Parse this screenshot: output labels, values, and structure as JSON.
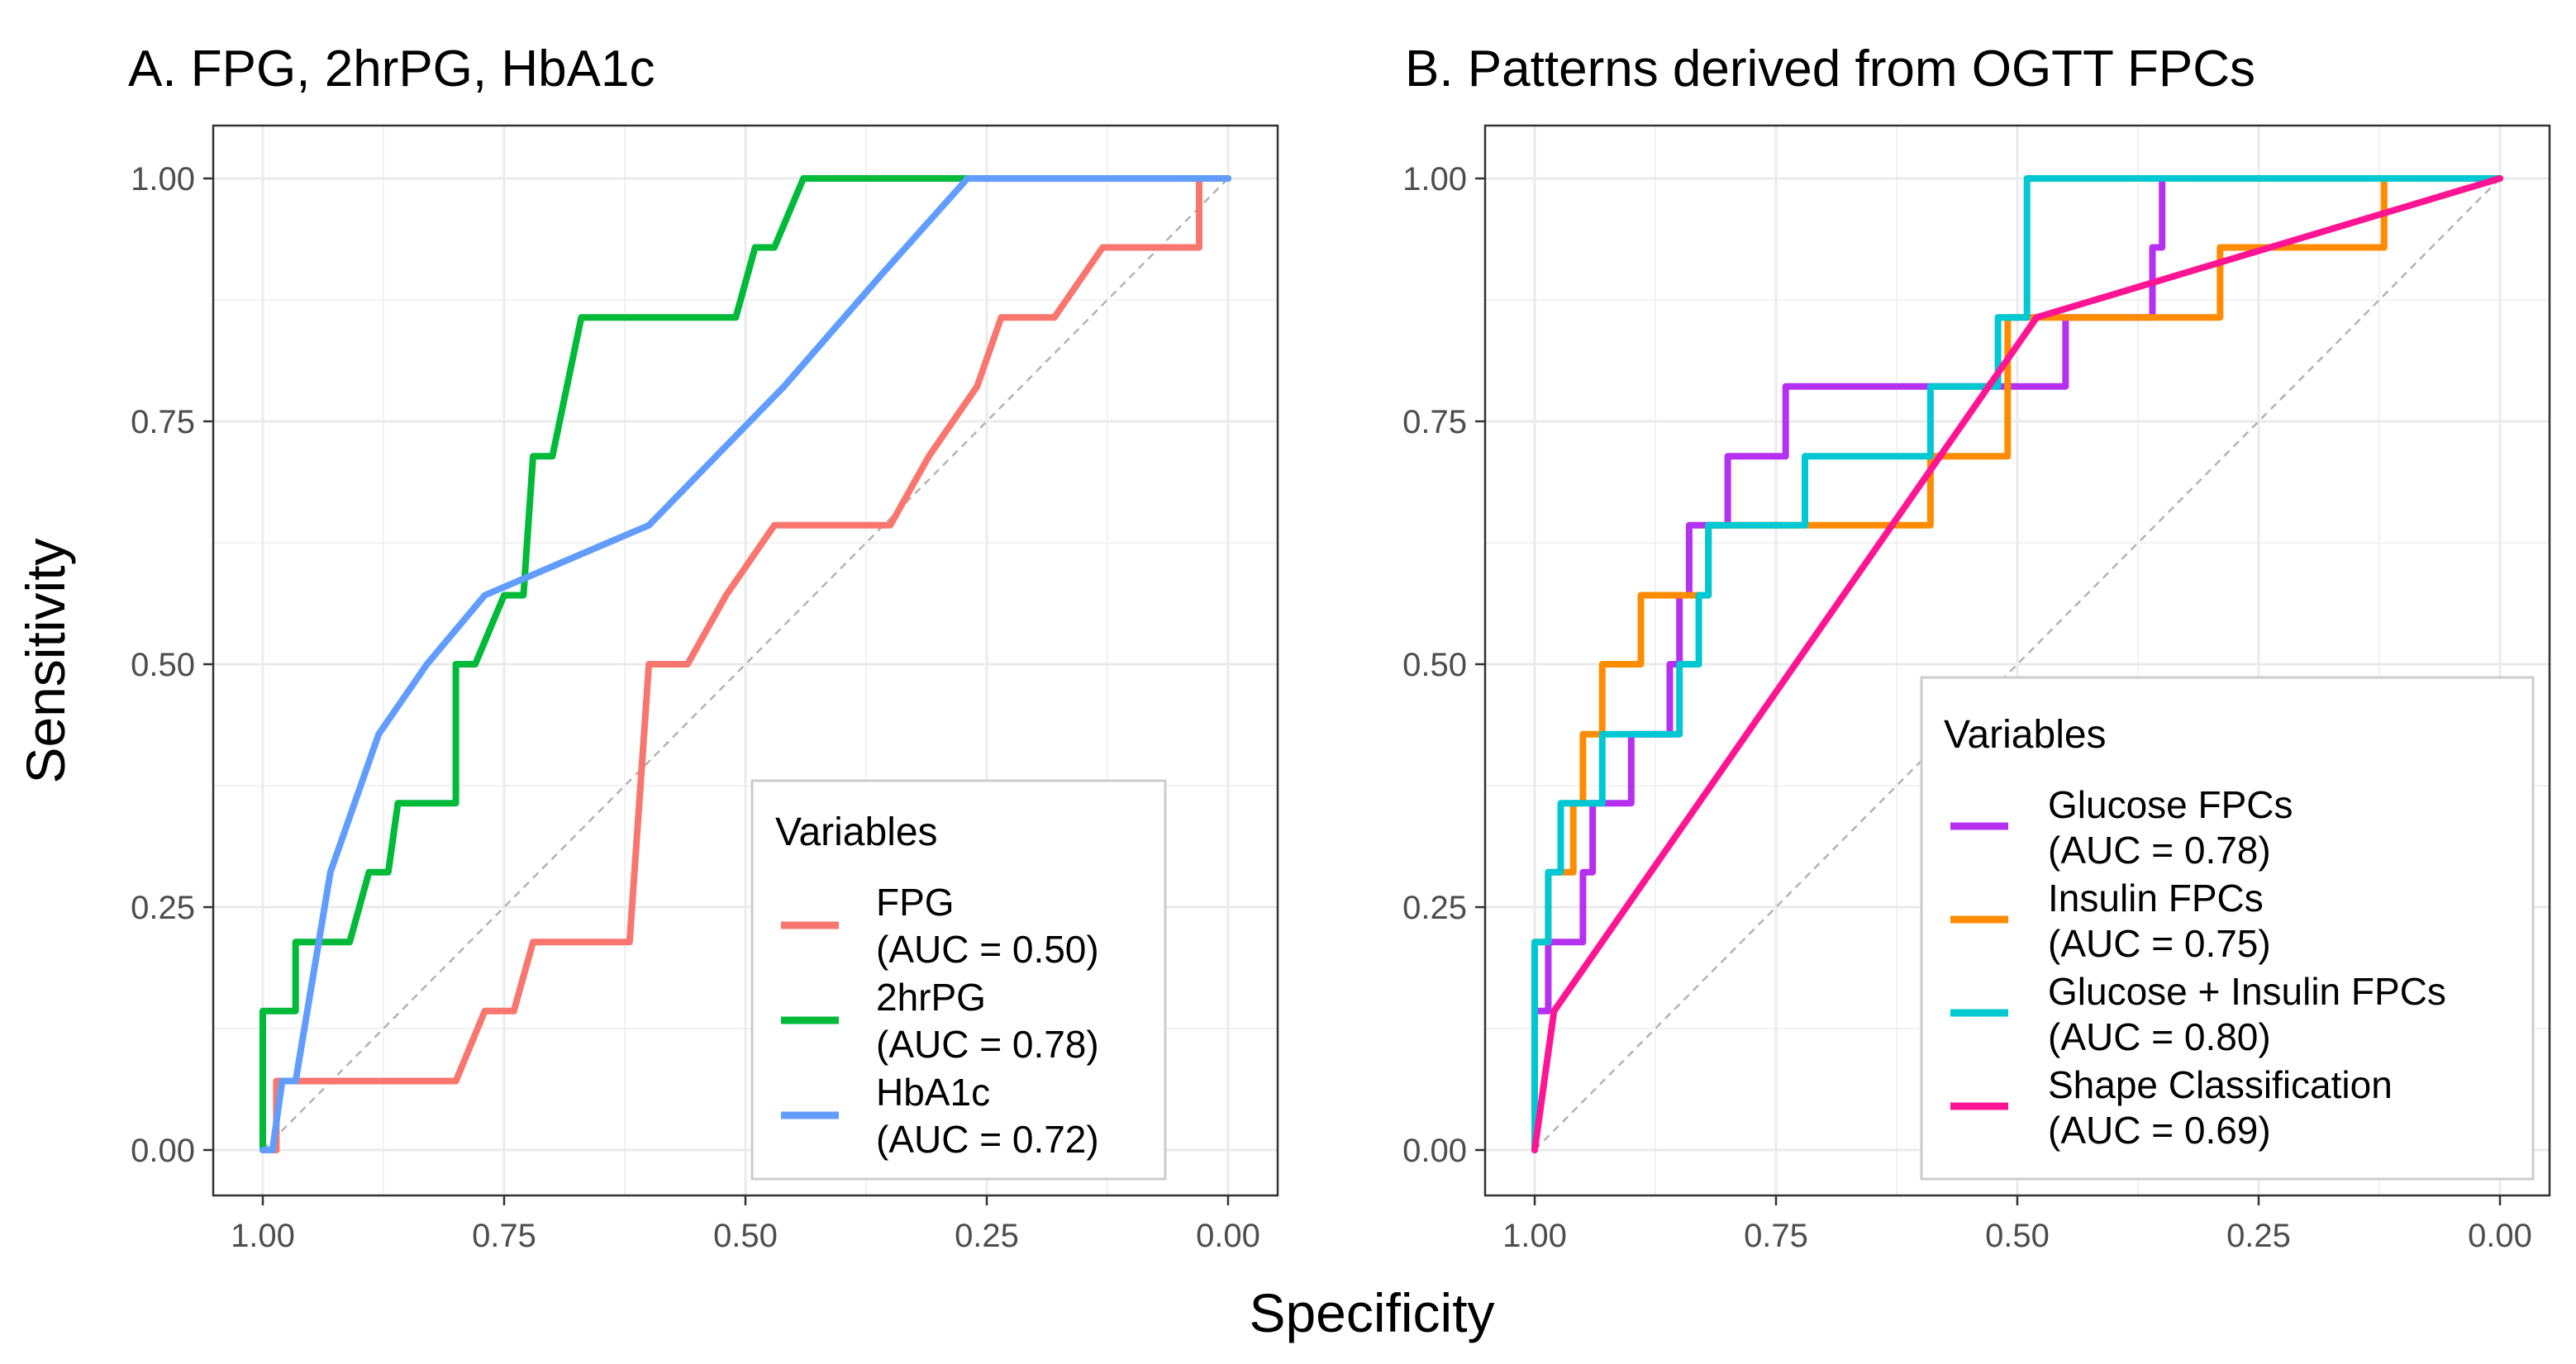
{
  "figure": {
    "xlabel": "Specificity",
    "ylabel": "Sensitivity",
    "tick_labels_x": [
      "1.00",
      "0.75",
      "0.50",
      "0.25",
      "0.00"
    ],
    "tick_labels_y": [
      "0.00",
      "0.25",
      "0.50",
      "0.75",
      "1.00"
    ]
  },
  "chart_data": [
    {
      "type": "line",
      "title": "A. FPG, 2hrPG, HbA1c",
      "xlabel": "Specificity",
      "ylabel": "Sensitivity",
      "xlim": [
        1.0,
        0.0
      ],
      "ylim": [
        0.0,
        1.0
      ],
      "x_reversed": true,
      "grid": true,
      "legend_position": "bottom-right",
      "legend_title": "Variables",
      "reference_line": "diagonal",
      "series": [
        {
          "name": "FPG",
          "auc_label": "(AUC = 0.50)",
          "color": "#f8766d",
          "points": [
            [
              1.0,
              0.0
            ],
            [
              0.986,
              0.0
            ],
            [
              0.986,
              0.071
            ],
            [
              0.8,
              0.071
            ],
            [
              0.77,
              0.143
            ],
            [
              0.74,
              0.143
            ],
            [
              0.72,
              0.214
            ],
            [
              0.62,
              0.214
            ],
            [
              0.6,
              0.5
            ],
            [
              0.56,
              0.5
            ],
            [
              0.52,
              0.571
            ],
            [
              0.47,
              0.643
            ],
            [
              0.35,
              0.643
            ],
            [
              0.31,
              0.714
            ],
            [
              0.26,
              0.786
            ],
            [
              0.235,
              0.857
            ],
            [
              0.18,
              0.857
            ],
            [
              0.13,
              0.929
            ],
            [
              0.03,
              0.929
            ],
            [
              0.03,
              1.0
            ],
            [
              0.0,
              1.0
            ]
          ]
        },
        {
          "name": "2hrPG",
          "auc_label": "(AUC = 0.78)",
          "color": "#00ba38",
          "points": [
            [
              1.0,
              0.0
            ],
            [
              1.0,
              0.143
            ],
            [
              0.966,
              0.143
            ],
            [
              0.966,
              0.214
            ],
            [
              0.91,
              0.214
            ],
            [
              0.89,
              0.286
            ],
            [
              0.87,
              0.286
            ],
            [
              0.86,
              0.357
            ],
            [
              0.8,
              0.357
            ],
            [
              0.8,
              0.5
            ],
            [
              0.78,
              0.5
            ],
            [
              0.75,
              0.571
            ],
            [
              0.73,
              0.571
            ],
            [
              0.72,
              0.714
            ],
            [
              0.7,
              0.714
            ],
            [
              0.67,
              0.857
            ],
            [
              0.51,
              0.857
            ],
            [
              0.49,
              0.929
            ],
            [
              0.47,
              0.929
            ],
            [
              0.44,
              1.0
            ],
            [
              0.0,
              1.0
            ]
          ]
        },
        {
          "name": "HbA1c",
          "auc_label": "(AUC = 0.72)",
          "color": "#619cff",
          "points": [
            [
              1.0,
              0.0
            ],
            [
              0.99,
              0.0
            ],
            [
              0.98,
              0.071
            ],
            [
              0.966,
              0.071
            ],
            [
              0.93,
              0.286
            ],
            [
              0.88,
              0.428
            ],
            [
              0.83,
              0.5
            ],
            [
              0.77,
              0.571
            ],
            [
              0.6,
              0.643
            ],
            [
              0.46,
              0.786
            ],
            [
              0.36,
              0.9
            ],
            [
              0.27,
              1.0
            ],
            [
              0.0,
              1.0
            ]
          ]
        }
      ]
    },
    {
      "type": "line",
      "title": "B. Patterns derived from OGTT FPCs",
      "xlabel": "Specificity",
      "ylabel": "Sensitivity",
      "xlim": [
        1.0,
        0.0
      ],
      "ylim": [
        0.0,
        1.0
      ],
      "x_reversed": true,
      "grid": true,
      "legend_position": "bottom-right",
      "legend_title": "Variables",
      "reference_line": "diagonal",
      "series": [
        {
          "name": "Glucose FPCs",
          "auc_label": "(AUC = 0.78)",
          "color": "#b530f0",
          "points": [
            [
              1.0,
              0.0
            ],
            [
              1.0,
              0.143
            ],
            [
              0.986,
              0.143
            ],
            [
              0.986,
              0.214
            ],
            [
              0.95,
              0.214
            ],
            [
              0.95,
              0.286
            ],
            [
              0.94,
              0.286
            ],
            [
              0.94,
              0.357
            ],
            [
              0.9,
              0.357
            ],
            [
              0.9,
              0.428
            ],
            [
              0.86,
              0.428
            ],
            [
              0.86,
              0.5
            ],
            [
              0.85,
              0.5
            ],
            [
              0.85,
              0.571
            ],
            [
              0.84,
              0.571
            ],
            [
              0.84,
              0.643
            ],
            [
              0.8,
              0.643
            ],
            [
              0.8,
              0.714
            ],
            [
              0.74,
              0.714
            ],
            [
              0.74,
              0.786
            ],
            [
              0.45,
              0.786
            ],
            [
              0.45,
              0.857
            ],
            [
              0.36,
              0.857
            ],
            [
              0.36,
              0.929
            ],
            [
              0.35,
              0.929
            ],
            [
              0.35,
              1.0
            ],
            [
              0.0,
              1.0
            ]
          ]
        },
        {
          "name": "Insulin FPCs",
          "auc_label": "(AUC = 0.75)",
          "color": "#ff8c00",
          "points": [
            [
              1.0,
              0.0
            ],
            [
              1.0,
              0.214
            ],
            [
              0.986,
              0.214
            ],
            [
              0.986,
              0.286
            ],
            [
              0.96,
              0.286
            ],
            [
              0.96,
              0.357
            ],
            [
              0.95,
              0.357
            ],
            [
              0.95,
              0.428
            ],
            [
              0.93,
              0.428
            ],
            [
              0.93,
              0.5
            ],
            [
              0.89,
              0.5
            ],
            [
              0.89,
              0.571
            ],
            [
              0.82,
              0.571
            ],
            [
              0.82,
              0.643
            ],
            [
              0.59,
              0.643
            ],
            [
              0.59,
              0.714
            ],
            [
              0.51,
              0.714
            ],
            [
              0.51,
              0.857
            ],
            [
              0.29,
              0.857
            ],
            [
              0.29,
              0.929
            ],
            [
              0.12,
              0.929
            ],
            [
              0.12,
              1.0
            ],
            [
              0.0,
              1.0
            ]
          ]
        },
        {
          "name": "Glucose + Insulin FPCs",
          "auc_label": "(AUC = 0.80)",
          "color": "#00c8d2",
          "points": [
            [
              1.0,
              0.0
            ],
            [
              1.0,
              0.214
            ],
            [
              0.986,
              0.214
            ],
            [
              0.986,
              0.286
            ],
            [
              0.973,
              0.286
            ],
            [
              0.973,
              0.357
            ],
            [
              0.93,
              0.357
            ],
            [
              0.93,
              0.428
            ],
            [
              0.85,
              0.428
            ],
            [
              0.85,
              0.5
            ],
            [
              0.83,
              0.5
            ],
            [
              0.83,
              0.571
            ],
            [
              0.82,
              0.571
            ],
            [
              0.82,
              0.643
            ],
            [
              0.72,
              0.643
            ],
            [
              0.72,
              0.714
            ],
            [
              0.59,
              0.714
            ],
            [
              0.59,
              0.786
            ],
            [
              0.52,
              0.786
            ],
            [
              0.52,
              0.857
            ],
            [
              0.49,
              0.857
            ],
            [
              0.49,
              1.0
            ],
            [
              0.0,
              1.0
            ]
          ]
        },
        {
          "name": "Shape Classification",
          "auc_label": "(AUC = 0.69)",
          "color": "#ff1493",
          "points": [
            [
              1.0,
              0.0
            ],
            [
              0.98,
              0.143
            ],
            [
              0.48,
              0.857
            ],
            [
              0.0,
              1.0
            ]
          ]
        }
      ]
    }
  ]
}
